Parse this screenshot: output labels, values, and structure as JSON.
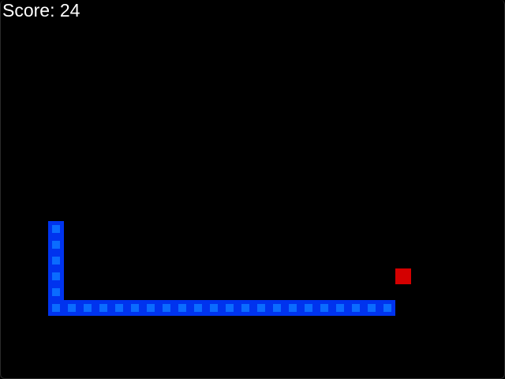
{
  "hud": {
    "score_text": "Score: 24"
  },
  "grid": {
    "columns": 32,
    "rows": 24
  },
  "snake": {
    "segments": [
      [
        3,
        14
      ],
      [
        3,
        15
      ],
      [
        3,
        16
      ],
      [
        3,
        17
      ],
      [
        3,
        18
      ],
      [
        3,
        19
      ],
      [
        4,
        19
      ],
      [
        5,
        19
      ],
      [
        6,
        19
      ],
      [
        7,
        19
      ],
      [
        8,
        19
      ],
      [
        9,
        19
      ],
      [
        10,
        19
      ],
      [
        11,
        19
      ],
      [
        12,
        19
      ],
      [
        13,
        19
      ],
      [
        14,
        19
      ],
      [
        15,
        19
      ],
      [
        16,
        19
      ],
      [
        17,
        19
      ],
      [
        18,
        19
      ],
      [
        19,
        19
      ],
      [
        20,
        19
      ],
      [
        21,
        19
      ],
      [
        22,
        19
      ],
      [
        23,
        19
      ],
      [
        24,
        19
      ]
    ]
  },
  "food": {
    "cell": [
      25,
      17
    ]
  },
  "colors": {
    "background": "#000000",
    "snake_border": "#0033ee",
    "snake_fill": "#0a6cff",
    "food": "#d40000",
    "text": "#ffffff"
  }
}
